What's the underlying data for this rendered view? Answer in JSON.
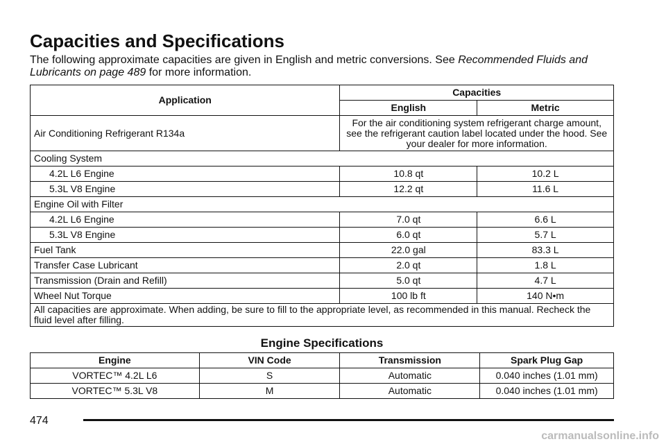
{
  "header": {
    "title": "Capacities and Specifications",
    "intro": "The following approximate capacities are given in English and metric conversions. See",
    "intro_link": "Recommended Fluids and Lubricants on page 489",
    "intro_end": "for more information."
  },
  "capacities_table": {
    "headers": {
      "application": "Application",
      "capacities": "Capacities",
      "english": "English",
      "metric": "Metric"
    },
    "rows": [
      {
        "label": "Air Conditioning Refrigerant R134a",
        "merged": "For the air conditioning system refrigerant charge amount, see the refrigerant caution label located under the hood. See your dealer for more information."
      },
      {
        "label": "Cooling System",
        "items": [
          [
            "4.2L L6 Engine",
            "10.8 qt",
            "10.2 L"
          ],
          [
            "5.3L V8 Engine",
            "12.2 qt",
            "11.6 L"
          ]
        ]
      },
      {
        "label": "Engine Oil with Filter",
        "items": [
          [
            "4.2L L6 Engine",
            "7.0 qt",
            "6.6 L"
          ],
          [
            "5.3L V8 Engine",
            "6.0 qt",
            "5.7 L"
          ]
        ]
      },
      {
        "cells": [
          "Fuel Tank",
          "22.0 gal",
          "83.3 L"
        ]
      },
      {
        "cells": [
          "Transfer Case Lubricant",
          "2.0 qt",
          "1.8 L"
        ]
      },
      {
        "cells": [
          "Transmission (Drain and Refill)",
          "5.0 qt",
          "4.7 L"
        ]
      },
      {
        "cells": [
          "Wheel Nut Torque",
          "100 lb ft",
          "140 N•m"
        ]
      }
    ],
    "note": "All capacities are approximate. When adding, be sure to fill to the appropriate level, as recommended in this manual. Recheck the fluid level after filling."
  },
  "engine_table": {
    "title": "Engine Specifications",
    "columns": [
      "Engine",
      "VIN Code",
      "Transmission",
      "Spark Plug Gap"
    ],
    "rows": [
      [
        "VORTEC™ 4.2L L6",
        "S",
        "Automatic",
        "0.040 inches (1.01 mm)"
      ],
      [
        "VORTEC™ 5.3L V8",
        "M",
        "Automatic",
        "0.040 inches (1.01 mm)"
      ]
    ]
  },
  "footer": {
    "page_number": "474",
    "watermark": "carmanualsonline.info"
  }
}
